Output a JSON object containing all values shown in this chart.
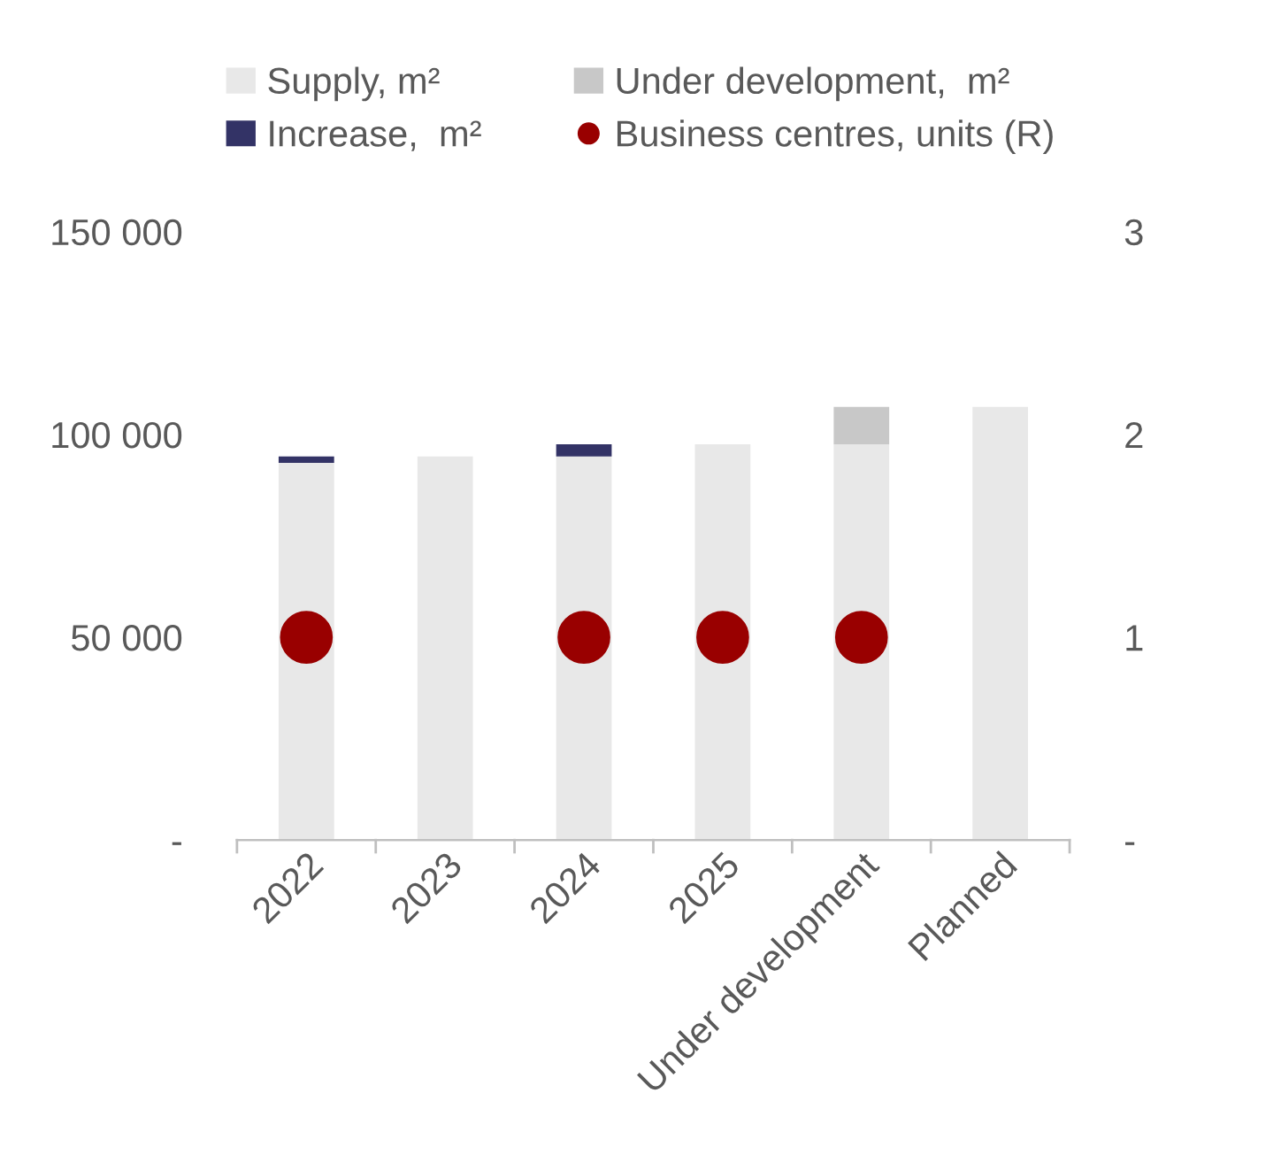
{
  "chart_data": {
    "type": "bar",
    "stacked": true,
    "categories": [
      "2022",
      "2023",
      "2024",
      "2025",
      "Under development",
      "Planned"
    ],
    "series": [
      {
        "name": "Supply, m²",
        "color": "#e8e8e8",
        "values": [
          93000,
          94600,
          94600,
          97600,
          97600,
          106800
        ]
      },
      {
        "name": "Increase,  m²",
        "color": "#333366",
        "values": [
          1600,
          null,
          3000,
          null,
          null,
          null
        ]
      },
      {
        "name": "Under development,  m²",
        "color": "#c8c8c8",
        "values": [
          null,
          null,
          null,
          null,
          9200,
          null
        ]
      },
      {
        "name": "Business centres, units (R)",
        "type": "scatter",
        "axis": "y2",
        "color": "#990000",
        "marker": "circle",
        "values": [
          1,
          null,
          1,
          1,
          1,
          null
        ]
      }
    ],
    "ylim": [
      0,
      150000
    ],
    "yticks": [
      {
        "value": 0,
        "label": "-"
      },
      {
        "value": 50000,
        "label": "50 000"
      },
      {
        "value": 100000,
        "label": "100 000"
      },
      {
        "value": 150000,
        "label": "150 000"
      }
    ],
    "y2lim": [
      0,
      3
    ],
    "y2ticks": [
      {
        "value": 0,
        "label": "-"
      },
      1,
      2,
      3
    ],
    "grid": false,
    "legend": "top"
  }
}
